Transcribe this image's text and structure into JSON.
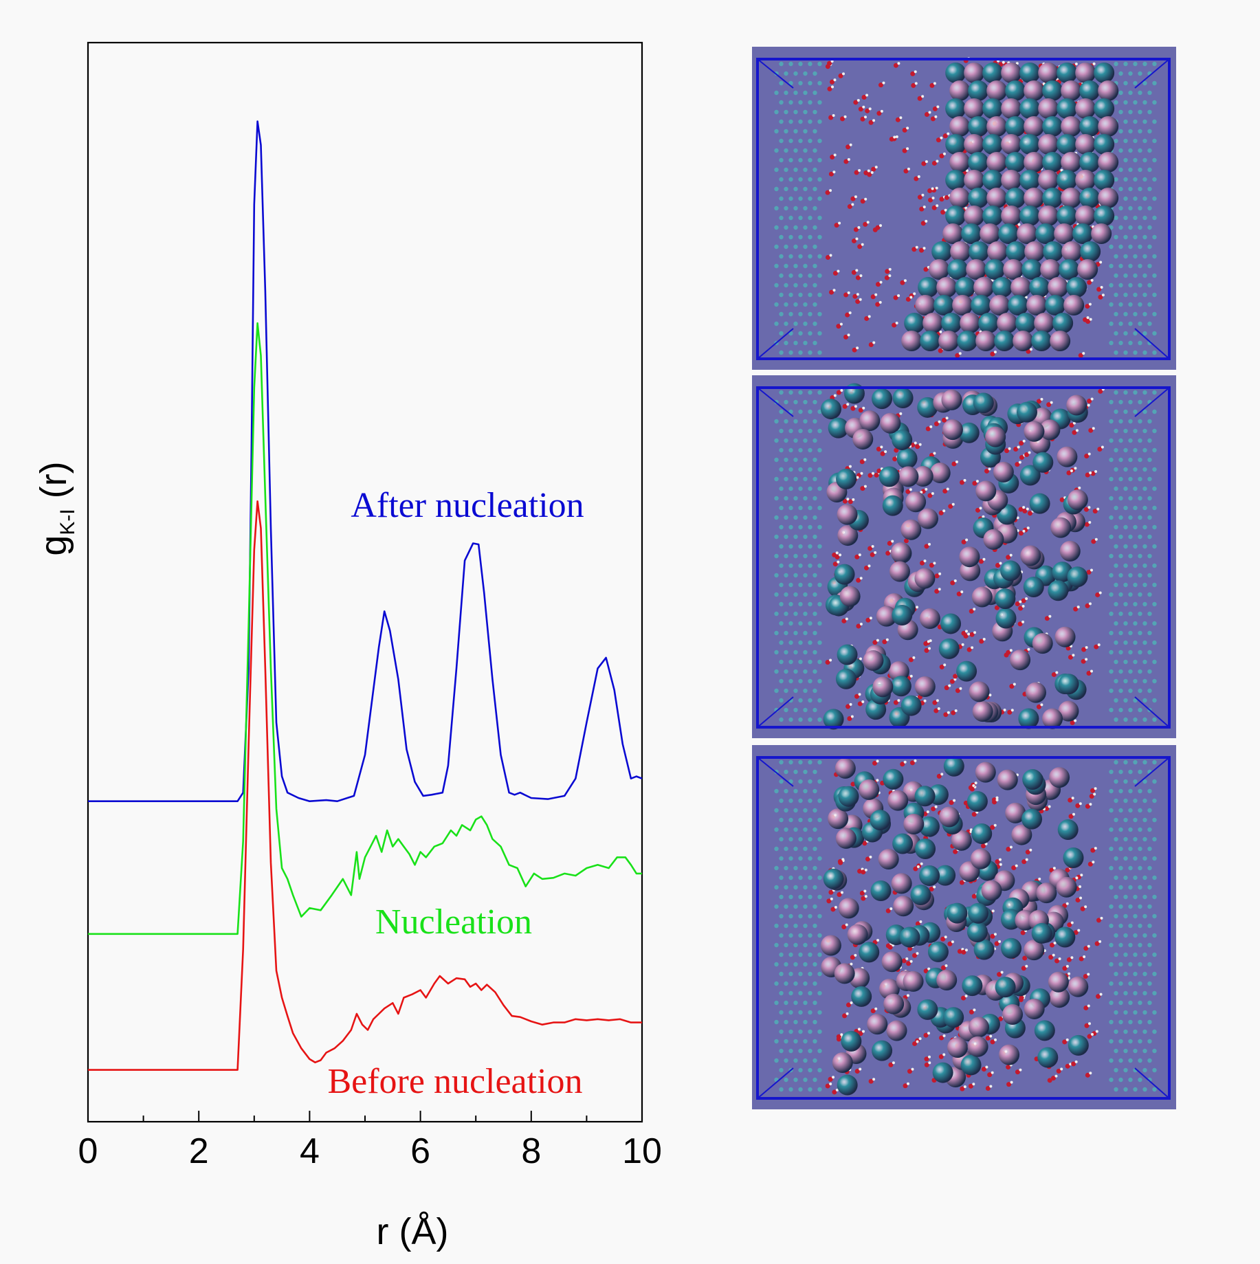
{
  "chart_data": {
    "type": "line",
    "xlabel": "r (Å)",
    "ylabel": {
      "main": "g",
      "subscript": "K-I",
      "suffix": " (r)"
    },
    "xlim": [
      0,
      10
    ],
    "xticks": [
      0,
      2,
      4,
      6,
      8,
      10
    ],
    "xtick_labels": [
      "0",
      "2",
      "4",
      "6",
      "8",
      "10"
    ],
    "ylim": [
      0,
      1
    ],
    "y_axis_numbered": false,
    "grid": false,
    "series": [
      {
        "name": "After nucleation",
        "color": "#0a0ad2",
        "points": [
          [
            0,
            0.297
          ],
          [
            2.7,
            0.297
          ],
          [
            2.8,
            0.305
          ],
          [
            2.9,
            0.42
          ],
          [
            2.95,
            0.62
          ],
          [
            3.0,
            0.85
          ],
          [
            3.06,
            0.927
          ],
          [
            3.12,
            0.905
          ],
          [
            3.2,
            0.77
          ],
          [
            3.3,
            0.55
          ],
          [
            3.4,
            0.37
          ],
          [
            3.5,
            0.32
          ],
          [
            3.6,
            0.305
          ],
          [
            3.8,
            0.3
          ],
          [
            4.0,
            0.297
          ],
          [
            4.3,
            0.298
          ],
          [
            4.5,
            0.297
          ],
          [
            4.8,
            0.302
          ],
          [
            5.0,
            0.34
          ],
          [
            5.15,
            0.4
          ],
          [
            5.25,
            0.44
          ],
          [
            5.35,
            0.473
          ],
          [
            5.45,
            0.455
          ],
          [
            5.6,
            0.41
          ],
          [
            5.75,
            0.345
          ],
          [
            5.9,
            0.315
          ],
          [
            6.05,
            0.302
          ],
          [
            6.2,
            0.303
          ],
          [
            6.4,
            0.305
          ],
          [
            6.5,
            0.33
          ],
          [
            6.65,
            0.42
          ],
          [
            6.8,
            0.52
          ],
          [
            6.95,
            0.536
          ],
          [
            7.05,
            0.535
          ],
          [
            7.15,
            0.49
          ],
          [
            7.3,
            0.41
          ],
          [
            7.45,
            0.34
          ],
          [
            7.6,
            0.305
          ],
          [
            7.7,
            0.303
          ],
          [
            7.8,
            0.305
          ],
          [
            8.0,
            0.3
          ],
          [
            8.3,
            0.299
          ],
          [
            8.6,
            0.302
          ],
          [
            8.8,
            0.318
          ],
          [
            9.0,
            0.37
          ],
          [
            9.2,
            0.42
          ],
          [
            9.35,
            0.43
          ],
          [
            9.5,
            0.4
          ],
          [
            9.65,
            0.35
          ],
          [
            9.8,
            0.318
          ],
          [
            9.9,
            0.32
          ],
          [
            10.0,
            0.318
          ]
        ]
      },
      {
        "name": "Nucleation",
        "color": "#19e119",
        "points": [
          [
            0,
            0.174
          ],
          [
            2.7,
            0.174
          ],
          [
            2.8,
            0.26
          ],
          [
            2.9,
            0.46
          ],
          [
            3.0,
            0.68
          ],
          [
            3.06,
            0.74
          ],
          [
            3.12,
            0.71
          ],
          [
            3.2,
            0.58
          ],
          [
            3.3,
            0.42
          ],
          [
            3.4,
            0.29
          ],
          [
            3.5,
            0.235
          ],
          [
            3.6,
            0.225
          ],
          [
            3.7,
            0.21
          ],
          [
            3.85,
            0.19
          ],
          [
            4.0,
            0.198
          ],
          [
            4.2,
            0.196
          ],
          [
            4.4,
            0.21
          ],
          [
            4.6,
            0.225
          ],
          [
            4.75,
            0.21
          ],
          [
            4.85,
            0.25
          ],
          [
            4.9,
            0.225
          ],
          [
            5.0,
            0.245
          ],
          [
            5.1,
            0.255
          ],
          [
            5.2,
            0.265
          ],
          [
            5.3,
            0.25
          ],
          [
            5.4,
            0.27
          ],
          [
            5.5,
            0.255
          ],
          [
            5.6,
            0.262
          ],
          [
            5.7,
            0.255
          ],
          [
            5.8,
            0.248
          ],
          [
            5.9,
            0.238
          ],
          [
            6.0,
            0.25
          ],
          [
            6.1,
            0.245
          ],
          [
            6.25,
            0.255
          ],
          [
            6.4,
            0.258
          ],
          [
            6.55,
            0.27
          ],
          [
            6.65,
            0.265
          ],
          [
            6.75,
            0.275
          ],
          [
            6.9,
            0.27
          ],
          [
            7.0,
            0.28
          ],
          [
            7.1,
            0.283
          ],
          [
            7.2,
            0.275
          ],
          [
            7.3,
            0.262
          ],
          [
            7.45,
            0.255
          ],
          [
            7.6,
            0.238
          ],
          [
            7.75,
            0.235
          ],
          [
            7.9,
            0.218
          ],
          [
            8.05,
            0.23
          ],
          [
            8.2,
            0.225
          ],
          [
            8.4,
            0.226
          ],
          [
            8.6,
            0.23
          ],
          [
            8.8,
            0.228
          ],
          [
            9.0,
            0.235
          ],
          [
            9.2,
            0.238
          ],
          [
            9.4,
            0.235
          ],
          [
            9.55,
            0.245
          ],
          [
            9.7,
            0.245
          ],
          [
            9.8,
            0.238
          ],
          [
            9.9,
            0.23
          ],
          [
            10.0,
            0.23
          ]
        ]
      },
      {
        "name": "Before nucleation",
        "color": "#e61414",
        "points": [
          [
            0,
            0.048
          ],
          [
            2.7,
            0.048
          ],
          [
            2.8,
            0.16
          ],
          [
            2.9,
            0.35
          ],
          [
            3.0,
            0.53
          ],
          [
            3.06,
            0.575
          ],
          [
            3.12,
            0.55
          ],
          [
            3.2,
            0.42
          ],
          [
            3.3,
            0.24
          ],
          [
            3.4,
            0.14
          ],
          [
            3.5,
            0.115
          ],
          [
            3.6,
            0.098
          ],
          [
            3.7,
            0.082
          ],
          [
            3.85,
            0.068
          ],
          [
            4.0,
            0.058
          ],
          [
            4.1,
            0.055
          ],
          [
            4.2,
            0.057
          ],
          [
            4.3,
            0.064
          ],
          [
            4.45,
            0.068
          ],
          [
            4.6,
            0.075
          ],
          [
            4.75,
            0.085
          ],
          [
            4.85,
            0.1
          ],
          [
            4.95,
            0.09
          ],
          [
            5.05,
            0.085
          ],
          [
            5.15,
            0.095
          ],
          [
            5.25,
            0.1
          ],
          [
            5.35,
            0.105
          ],
          [
            5.5,
            0.11
          ],
          [
            5.6,
            0.1
          ],
          [
            5.7,
            0.115
          ],
          [
            5.85,
            0.118
          ],
          [
            6.0,
            0.122
          ],
          [
            6.1,
            0.115
          ],
          [
            6.25,
            0.128
          ],
          [
            6.35,
            0.135
          ],
          [
            6.5,
            0.128
          ],
          [
            6.65,
            0.133
          ],
          [
            6.8,
            0.132
          ],
          [
            6.9,
            0.125
          ],
          [
            7.0,
            0.128
          ],
          [
            7.1,
            0.122
          ],
          [
            7.2,
            0.127
          ],
          [
            7.35,
            0.12
          ],
          [
            7.5,
            0.108
          ],
          [
            7.65,
            0.098
          ],
          [
            7.8,
            0.097
          ],
          [
            8.0,
            0.093
          ],
          [
            8.2,
            0.09
          ],
          [
            8.4,
            0.092
          ],
          [
            8.6,
            0.092
          ],
          [
            8.8,
            0.095
          ],
          [
            9.0,
            0.094
          ],
          [
            9.2,
            0.095
          ],
          [
            9.4,
            0.094
          ],
          [
            9.6,
            0.095
          ],
          [
            9.8,
            0.092
          ],
          [
            10.0,
            0.092
          ]
        ]
      }
    ],
    "annotations": [
      {
        "text": "After nucleation",
        "color": "#0a0ad2"
      },
      {
        "text": "Nucleation",
        "color": "#19e119"
      },
      {
        "text": "Before nucleation",
        "color": "#e61414"
      }
    ]
  },
  "snapshots": {
    "background_color": "#6a6aac",
    "box_color": "#1515cc",
    "k_ion_color": "#2f8fa0",
    "i_ion_color": "#c88fbc",
    "panels": [
      "top",
      "middle",
      "bottom"
    ]
  }
}
